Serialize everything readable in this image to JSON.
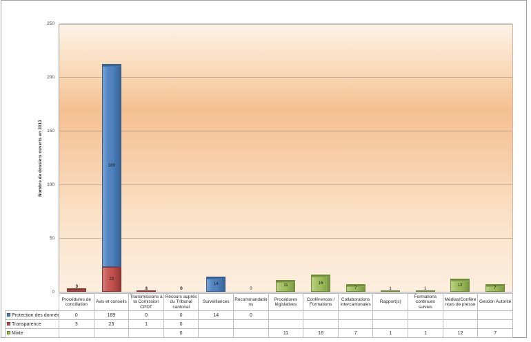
{
  "chart_data": {
    "type": "bar",
    "stacked": true,
    "title": "",
    "xlabel": "",
    "ylabel": "Nombre de dossiers ouverts en 2013",
    "ylim": [
      0,
      250
    ],
    "yticks": [
      0,
      50,
      100,
      150,
      200,
      250
    ],
    "grid": true,
    "legend_position": "table-left",
    "plot_bg_gradient": [
      "#fdf2e7",
      "#f5c091",
      "#fdeede"
    ],
    "categories": [
      "Procédures de conciliation",
      "Avis et conseils",
      "Transmissions à la Comission CPDT",
      "Recours auprès du Tribunal cantonal",
      "Surveillances",
      "Recommandations",
      "Procédures législatives",
      "Conférences / Formations",
      "Collaborations intercantonales",
      "Rapport(s)",
      "Formations continues suivies",
      "Médias/Conférences de presse",
      "Gestion Autorité"
    ],
    "series": [
      {
        "name": "Protection des données",
        "color": "#4f81bd",
        "css": "blue",
        "values": [
          0,
          189,
          0,
          0,
          14,
          0,
          "",
          "",
          "",
          "",
          "",
          "",
          ""
        ]
      },
      {
        "name": "Transparence",
        "color": "#c0504d",
        "css": "red",
        "values": [
          3,
          23,
          1,
          0,
          "",
          "",
          "",
          "",
          "",
          "",
          "",
          "",
          ""
        ]
      },
      {
        "name": "Mixte",
        "color": "#9bbb59",
        "css": "green",
        "values": [
          "",
          "",
          "",
          0,
          "",
          "",
          11,
          16,
          7,
          1,
          1,
          12,
          7
        ]
      }
    ],
    "stack_order_bottom_to_top": [
      "Mixte",
      "Transparence",
      "Protection des données"
    ]
  }
}
